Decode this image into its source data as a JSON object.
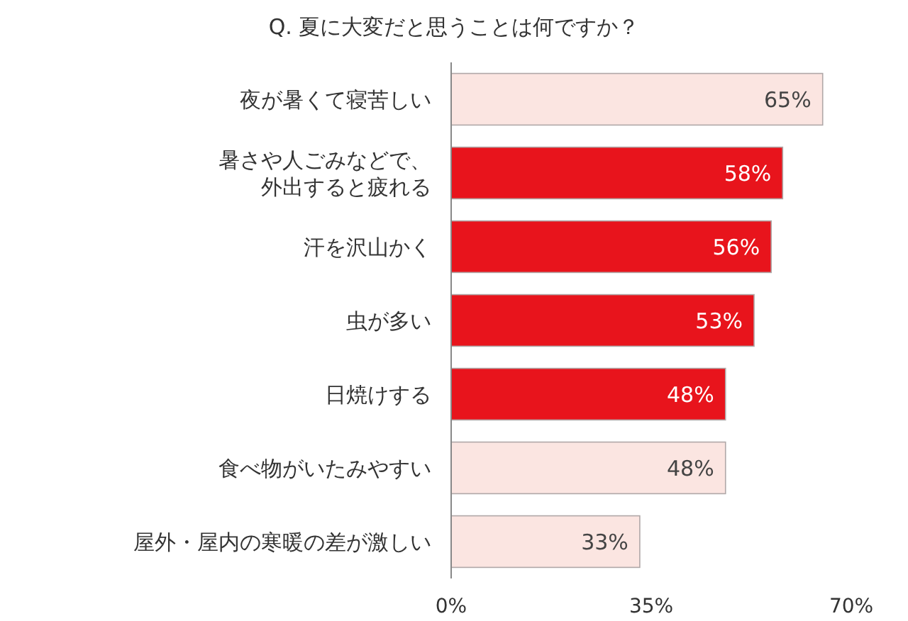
{
  "chart_data": {
    "type": "bar",
    "orientation": "horizontal",
    "title": "Q. 夏に大変だと思うことは何ですか？",
    "categories": [
      "夜が暑くて寝苦しい",
      "暑さや人ごみなどで、外出すると疲れる",
      "汗を沢山かく",
      "虫が多い",
      "日焼けする",
      "食べ物がいたみやすい",
      "屋外・屋内の寒暖の差が激しい"
    ],
    "values": [
      65,
      58,
      56,
      53,
      48,
      48,
      33
    ],
    "colors": [
      "#fbe5e1",
      "#e8141c",
      "#e8141c",
      "#e8141c",
      "#e8141c",
      "#fbe5e1",
      "#fbe5e1"
    ],
    "value_labels": [
      "65%",
      "58%",
      "56%",
      "53%",
      "48%",
      "48%",
      "33%"
    ],
    "xlim": [
      0,
      70
    ],
    "xticks": [
      {
        "value": 0,
        "label": "0%"
      },
      {
        "value": 35,
        "label": "35%"
      },
      {
        "value": 70,
        "label": "70%"
      }
    ],
    "grid": false
  }
}
